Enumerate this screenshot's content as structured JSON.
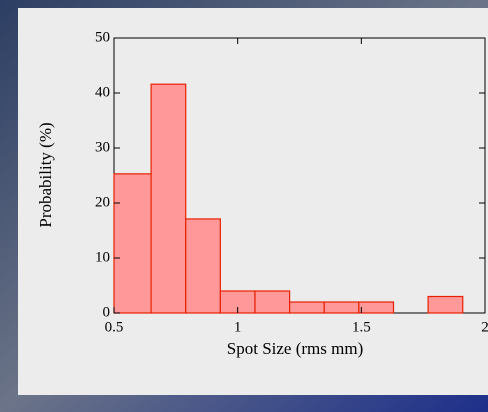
{
  "chart_data": {
    "type": "histogram",
    "xlabel": "Spot Size (rms mm)",
    "ylabel": "Probability (%)",
    "bins": [
      0.5,
      0.65,
      0.79,
      0.93,
      1.07,
      1.21,
      1.35,
      1.49,
      1.63,
      1.77,
      1.91
    ],
    "values": [
      25.3,
      41.6,
      17.1,
      4,
      4,
      2,
      2,
      2,
      0,
      3
    ],
    "color": "#ff9999",
    "edgecolor": "#e82000",
    "xlim": [
      0.5,
      2
    ],
    "xticks": [
      0.5,
      1,
      1.5,
      2
    ],
    "ylim": [
      0,
      50
    ],
    "yticks": [
      0,
      10,
      20,
      30,
      40,
      50
    ]
  }
}
